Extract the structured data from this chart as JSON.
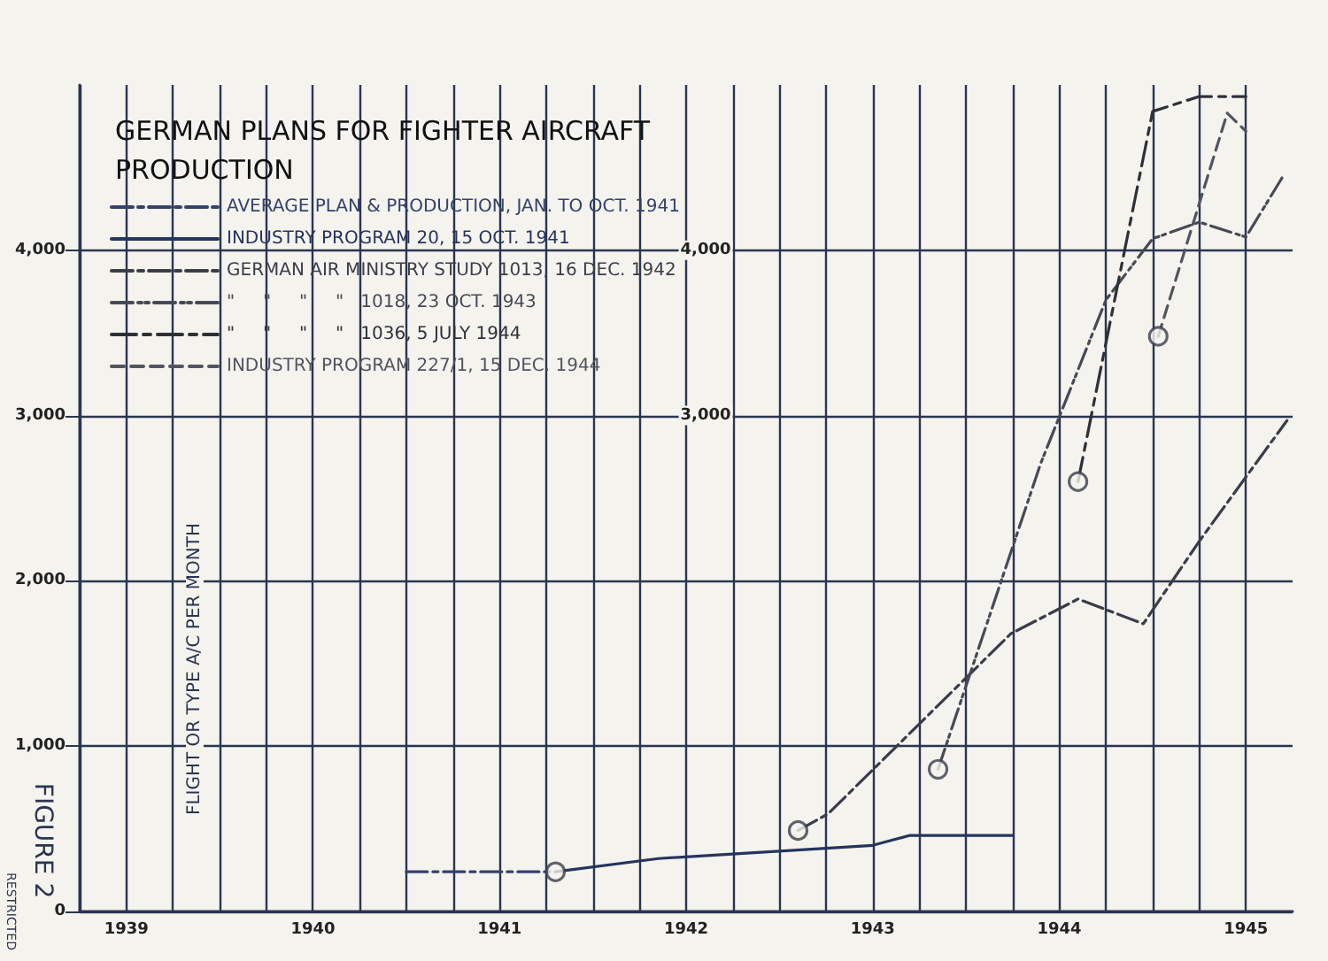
{
  "chart_data": {
    "type": "line",
    "title": "GERMAN PLANS FOR FIGHTER AIRCRAFT\nPRODUCTION",
    "ylabel": "FLIGHT OR TYPE A/C PER MONTH",
    "annotations": [
      "FIGURE 2",
      "RESTRICTED"
    ],
    "xlim": [
      1938.75,
      1945.25
    ],
    "xticks": [
      {
        "value": 1938.75,
        "label": null
      },
      {
        "value": 1939,
        "label": "1939"
      },
      {
        "value": 1939.25,
        "label": null
      },
      {
        "value": 1939.5,
        "label": null
      },
      {
        "value": 1939.75,
        "label": null
      },
      {
        "value": 1940,
        "label": "1940"
      },
      {
        "value": 1940.25,
        "label": null
      },
      {
        "value": 1940.5,
        "label": null
      },
      {
        "value": 1940.75,
        "label": null
      },
      {
        "value": 1941,
        "label": "1941"
      },
      {
        "value": 1941.25,
        "label": null
      },
      {
        "value": 1941.5,
        "label": null
      },
      {
        "value": 1941.75,
        "label": null
      },
      {
        "value": 1942,
        "label": "1942"
      },
      {
        "value": 1942.25,
        "label": null
      },
      {
        "value": 1942.5,
        "label": null
      },
      {
        "value": 1942.75,
        "label": null
      },
      {
        "value": 1943,
        "label": "1943"
      },
      {
        "value": 1943.25,
        "label": null
      },
      {
        "value": 1943.5,
        "label": null
      },
      {
        "value": 1943.75,
        "label": null
      },
      {
        "value": 1944,
        "label": "1944"
      },
      {
        "value": 1944.25,
        "label": null
      },
      {
        "value": 1944.5,
        "label": null
      },
      {
        "value": 1944.75,
        "label": null
      },
      {
        "value": 1945,
        "label": "1945"
      }
    ],
    "ylim": [
      0,
      5000
    ],
    "yticks": [
      0,
      {
        "value": 1000,
        "label": "1,000"
      },
      {
        "value": 2000,
        "label": "2,000"
      },
      {
        "value": 3000,
        "label": "3,000"
      },
      {
        "value": 4000,
        "label": "4,000"
      }
    ],
    "y2lim": [
      0,
      5000
    ],
    "y2ticks": [
      {
        "value": 3000,
        "label": "3,000"
      },
      {
        "value": 4000,
        "label": "4,000"
      }
    ],
    "grid": true,
    "legend": "top left",
    "series": [
      {
        "name": "AVERAGE PLAN & PRODUCTION, JAN. TO OCT. 1941",
        "color": "#34426b",
        "line_style": "dashdot",
        "x": [
          1940.5,
          1941.3
        ],
        "values": [
          240,
          240
        ]
      },
      {
        "name": "INDUSTRY PROGRAM 20, 15 OCT. 1941",
        "color": "#26345e",
        "line_style": "solid",
        "x": [
          1941.3,
          1941.85,
          1943.0,
          1943.2,
          1943.75
        ],
        "values": [
          240,
          320,
          400,
          460,
          460
        ]
      },
      {
        "name": "GERMAN AIR MINISTRY STUDY 1013, 16 DEC. 1942",
        "color": "#3a3d48",
        "line_style": "dashdot",
        "x": [
          1942.6,
          1942.76,
          1943.74,
          1944.1,
          1944.45,
          1944.75,
          1945.22
        ],
        "values": [
          490,
          590,
          1680,
          1890,
          1740,
          2240,
          2970
        ]
      },
      {
        "name": "\"     \"     \"     \"   1018, 23 OCT. 1943",
        "color": "#474a55",
        "line_style": "dashdotdot",
        "x": [
          1943.35,
          1943.9,
          1944.25,
          1944.5,
          1944.75,
          1945.0,
          1945.2
        ],
        "values": [
          860,
          2710,
          3700,
          4070,
          4170,
          4080,
          4450
        ]
      },
      {
        "name": "\"     \"     \"     \"   1036, 5 JULY 1944",
        "color": "#2e3038",
        "line_style": "longdash",
        "x": [
          1944.1,
          1944.5,
          1944.75,
          1945.0
        ],
        "values": [
          2600,
          4840,
          4930,
          4930
        ]
      },
      {
        "name": "INDUSTRY PROGRAM 227/1, 15 DEC. 1944",
        "color": "#52545e",
        "line_style": "dashed",
        "x": [
          1944.53,
          1944.9,
          1945.0
        ],
        "values": [
          3480,
          4830,
          4720
        ]
      },
      {
        "type": "scatter",
        "color": "#3a3d48",
        "marker": "circle",
        "x": [
          1941.3,
          1942.6,
          1943.35,
          1944.1,
          1944.53
        ],
        "values": [
          240,
          490,
          860,
          2600,
          3480
        ]
      }
    ]
  }
}
